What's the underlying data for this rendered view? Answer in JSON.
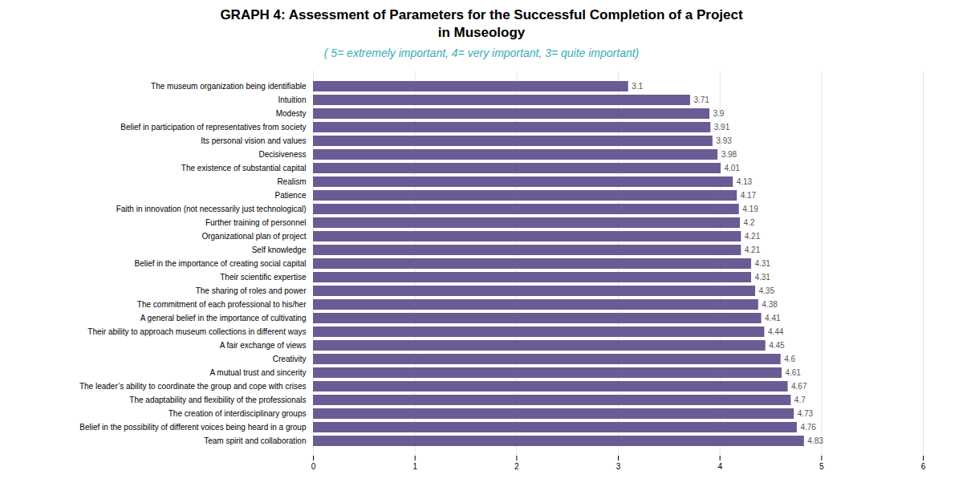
{
  "chart_data": {
    "type": "bar",
    "orientation": "horizontal",
    "title": "GRAPH 4: Assessment of Parameters for the Successful Completion of a Project\nin Museology",
    "subtitle": "( 5= extremely important, 4= very important, 3= quite important)",
    "categories": [
      "Team spirit and collaboration",
      "Belief in the possibility of different voices being heard in a group",
      "The creation of interdisciplinary groups",
      "The adaptability and flexibility of the professionals",
      "The leader’s ability to coordinate the group and cope with crises",
      "A mutual trust and sincerity",
      "Creativity",
      "A fair exchange of views",
      "Their ability to approach museum collections in different ways",
      "A general belief in the importance of cultivating",
      "The commitment of each professional to his/her",
      "The sharing of roles and power",
      "Their scientific expertise",
      "Belief in the importance of creating social capital",
      "Self knowledge",
      "Organizational plan of project",
      "Further training of personnel",
      "Faith in innovation (not necessarily just technological)",
      "Patience",
      "Realism",
      "The existence of substantial capital",
      "Decisiveness",
      "Its personal vision and values",
      "Belief in participation of representatives from society",
      "Modesty",
      "Intuition",
      "The museum organization being identifiable"
    ],
    "values": [
      4.83,
      4.76,
      4.73,
      4.7,
      4.67,
      4.61,
      4.6,
      4.45,
      4.44,
      4.41,
      4.38,
      4.35,
      4.31,
      4.31,
      4.21,
      4.21,
      4.2,
      4.19,
      4.17,
      4.13,
      4.01,
      3.98,
      3.93,
      3.91,
      3.9,
      3.71,
      3.1
    ],
    "color": "#6B5B95",
    "xlim": [
      0,
      6
    ],
    "xticks": [
      0,
      1,
      2,
      3,
      4,
      5,
      6
    ],
    "grid": true,
    "data_labels": true
  }
}
